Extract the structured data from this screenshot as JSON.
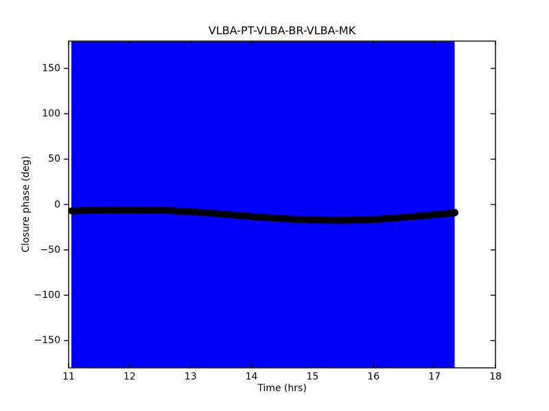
{
  "figure": {
    "title": "VLBA-PT-VLBA-BR-VLBA-MK",
    "xlabel": "Time (hrs)",
    "ylabel": "Closure phase (deg)",
    "background": "#ffffff"
  },
  "chart_data": {
    "type": "scatter",
    "title": "VLBA-PT-VLBA-BR-VLBA-MK",
    "xlabel": "Time (hrs)",
    "ylabel": "Closure phase (deg)",
    "xlim": [
      11,
      18
    ],
    "ylim": [
      -180,
      180
    ],
    "grid": false,
    "legend": null,
    "x_ticks": [
      {
        "value": 11,
        "label": "11"
      },
      {
        "value": 12,
        "label": "12"
      },
      {
        "value": 13,
        "label": "13"
      },
      {
        "value": 14,
        "label": "14"
      },
      {
        "value": 15,
        "label": "15"
      },
      {
        "value": 16,
        "label": "16"
      },
      {
        "value": 17,
        "label": "17"
      },
      {
        "value": 18,
        "label": "18"
      }
    ],
    "y_ticks": [
      {
        "value": 150,
        "label": "150"
      },
      {
        "value": 100,
        "label": "100"
      },
      {
        "value": 50,
        "label": "50"
      },
      {
        "value": 0,
        "label": "0"
      },
      {
        "value": -50,
        "label": "−50"
      },
      {
        "value": -100,
        "label": "−100"
      },
      {
        "value": -150,
        "label": "−150"
      }
    ],
    "error_band": {
      "description": "error bars saturate the full phase range",
      "color": "#0000ff",
      "t_start": 11.045,
      "t_end": 17.33,
      "y_min": -180,
      "y_max": 180
    },
    "series": [
      {
        "name": "closure phase",
        "marker": "filled-circle",
        "marker_size_px": 10,
        "color": "#000000",
        "points": [
          [
            11.05,
            -7.0
          ],
          [
            11.2,
            -6.6
          ],
          [
            11.4,
            -6.2
          ],
          [
            11.6,
            -5.9
          ],
          [
            11.8,
            -5.8
          ],
          [
            12.0,
            -5.7
          ],
          [
            12.2,
            -5.8
          ],
          [
            12.4,
            -6.0
          ],
          [
            12.6,
            -6.4
          ],
          [
            12.8,
            -7.0
          ],
          [
            13.0,
            -7.8
          ],
          [
            13.2,
            -8.7
          ],
          [
            13.4,
            -9.7
          ],
          [
            13.6,
            -10.8
          ],
          [
            13.8,
            -11.9
          ],
          [
            14.0,
            -13.0
          ],
          [
            14.2,
            -14.0
          ],
          [
            14.4,
            -14.9
          ],
          [
            14.6,
            -15.7
          ],
          [
            14.8,
            -16.4
          ],
          [
            15.0,
            -16.9
          ],
          [
            15.2,
            -17.2
          ],
          [
            15.4,
            -17.3
          ],
          [
            15.6,
            -17.2
          ],
          [
            15.8,
            -16.9
          ],
          [
            16.0,
            -16.3
          ],
          [
            16.2,
            -15.5
          ],
          [
            16.4,
            -14.5
          ],
          [
            16.6,
            -13.4
          ],
          [
            16.8,
            -12.2
          ],
          [
            17.0,
            -11.0
          ],
          [
            17.15,
            -10.1
          ],
          [
            17.33,
            -9.0
          ]
        ]
      }
    ],
    "axis_color": "#000000"
  }
}
